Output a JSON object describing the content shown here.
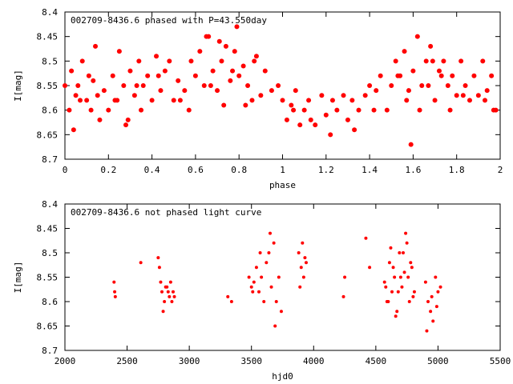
{
  "chart_data": [
    {
      "type": "scatter",
      "title": "002709-8436.6 phased with P=43.550day",
      "xlabel": "phase",
      "ylabel": "I[mag]",
      "xlim": [
        0,
        2
      ],
      "ylim": [
        8.4,
        8.7
      ],
      "y_inverted": true,
      "x_ticks": [
        "0",
        "0.2",
        "0.4",
        "0.6",
        "0.8",
        "1",
        "1.2",
        "1.4",
        "1.6",
        "1.8",
        "2"
      ],
      "y_ticks": [
        "8.4",
        "8.45",
        "8.5",
        "8.55",
        "8.6",
        "8.65",
        "8.7"
      ],
      "marker": "filled-circle",
      "color": "#ff0000",
      "grid": false,
      "series": [
        {
          "x": [
            0.0,
            0.02,
            0.03,
            0.04,
            0.05,
            0.06,
            0.08,
            0.1,
            0.12,
            0.13,
            0.14,
            0.16,
            0.18,
            0.2,
            0.22,
            0.24,
            0.25,
            0.27,
            0.28,
            0.3,
            0.32,
            0.34,
            0.35,
            0.36,
            0.38,
            0.4,
            0.42,
            0.44,
            0.46,
            0.48,
            0.5,
            0.52,
            0.55,
            0.58,
            0.6,
            0.62,
            0.64,
            0.66,
            0.68,
            0.7,
            0.72,
            0.74,
            0.76,
            0.78,
            0.8,
            0.82,
            0.84,
            0.86,
            0.88,
            0.9,
            0.92,
            0.95,
            0.98,
            1.0,
            1.02,
            1.04,
            1.06,
            1.08,
            1.1,
            1.12,
            1.15,
            1.18,
            1.2,
            1.22,
            1.25,
            1.28,
            1.3,
            1.32,
            1.35,
            1.38,
            1.4,
            1.42,
            1.45,
            1.48,
            1.5,
            1.52,
            1.54,
            1.56,
            1.58,
            1.6,
            1.62,
            1.64,
            1.66,
            1.68,
            1.7,
            1.72,
            1.74,
            1.76,
            1.78,
            1.8,
            1.82,
            1.84,
            1.86,
            1.88,
            1.9,
            1.92,
            1.94,
            1.96,
            1.98,
            0.07,
            0.11,
            0.15,
            0.23,
            0.29,
            0.33,
            0.43,
            0.53,
            0.57,
            0.67,
            0.73,
            0.77,
            0.83,
            0.87,
            1.05,
            1.13,
            1.23,
            1.33,
            1.43,
            1.53,
            1.57,
            1.63,
            1.67,
            1.73,
            1.77,
            1.83,
            1.93,
            1.97,
            0.65,
            0.79,
            1.69,
            1.59,
            0.71
          ],
          "y": [
            8.55,
            8.6,
            8.52,
            8.64,
            8.57,
            8.55,
            8.5,
            8.58,
            8.6,
            8.54,
            8.47,
            8.62,
            8.56,
            8.6,
            8.53,
            8.58,
            8.48,
            8.55,
            8.63,
            8.52,
            8.57,
            8.5,
            8.6,
            8.55,
            8.53,
            8.58,
            8.49,
            8.56,
            8.52,
            8.5,
            8.58,
            8.54,
            8.56,
            8.5,
            8.53,
            8.48,
            8.55,
            8.45,
            8.52,
            8.56,
            8.5,
            8.47,
            8.54,
            8.48,
            8.53,
            8.51,
            8.55,
            8.58,
            8.49,
            8.57,
            8.52,
            8.56,
            8.55,
            8.58,
            8.62,
            8.59,
            8.56,
            8.63,
            8.6,
            8.58,
            8.63,
            8.57,
            8.61,
            8.65,
            8.6,
            8.57,
            8.62,
            8.58,
            8.6,
            8.57,
            8.55,
            8.6,
            8.53,
            8.6,
            8.55,
            8.5,
            8.53,
            8.48,
            8.56,
            8.52,
            8.45,
            8.55,
            8.5,
            8.47,
            8.58,
            8.52,
            8.5,
            8.55,
            8.53,
            8.57,
            8.5,
            8.55,
            8.58,
            8.53,
            8.57,
            8.5,
            8.56,
            8.53,
            8.6,
            8.58,
            8.53,
            8.57,
            8.58,
            8.62,
            8.55,
            8.53,
            8.58,
            8.6,
            8.55,
            8.59,
            8.52,
            8.59,
            8.5,
            8.6,
            8.62,
            8.58,
            8.64,
            8.56,
            8.53,
            8.58,
            8.6,
            8.55,
            8.53,
            8.6,
            8.57,
            8.58,
            8.6,
            8.45,
            8.43,
            8.5,
            8.67,
            8.46
          ]
        }
      ]
    },
    {
      "type": "scatter",
      "title": "002709-8436.6 not phased light curve",
      "xlabel": "hjd0",
      "ylabel": "I[mag]",
      "xlim": [
        2000,
        5500
      ],
      "ylim": [
        8.4,
        8.7
      ],
      "y_inverted": true,
      "x_ticks": [
        "2000",
        "2500",
        "3000",
        "3500",
        "4000",
        "4500",
        "5000",
        "5500"
      ],
      "y_ticks": [
        "8.4",
        "8.45",
        "8.5",
        "8.55",
        "8.6",
        "8.65",
        "8.7"
      ],
      "marker": "filled-circle",
      "color": "#ff0000",
      "grid": false,
      "series": [
        {
          "x": [
            2395,
            2400,
            2405,
            2610,
            2750,
            2760,
            2770,
            2780,
            2800,
            2820,
            2830,
            2840,
            2850,
            2860,
            2870,
            2880,
            2790,
            2810,
            3310,
            3340,
            3480,
            3500,
            3520,
            3540,
            3560,
            3580,
            3600,
            3620,
            3640,
            3660,
            3680,
            3700,
            3720,
            3740,
            3510,
            3570,
            3650,
            3690,
            3880,
            3900,
            3920,
            3940,
            3890,
            3910,
            3930,
            4240,
            4250,
            4420,
            4450,
            4570,
            4590,
            4610,
            4630,
            4650,
            4670,
            4690,
            4710,
            4730,
            4750,
            4770,
            4790,
            4810,
            4580,
            4620,
            4660,
            4700,
            4740,
            4780,
            4600,
            4640,
            4680,
            4720,
            4760,
            4800,
            4900,
            4920,
            4940,
            4960,
            4980,
            5000,
            5020,
            4910,
            4950,
            4990
          ],
          "y": [
            8.56,
            8.58,
            8.59,
            8.52,
            8.51,
            8.53,
            8.56,
            8.58,
            8.6,
            8.57,
            8.58,
            8.59,
            8.56,
            8.6,
            8.58,
            8.59,
            8.62,
            8.57,
            8.59,
            8.6,
            8.55,
            8.57,
            8.56,
            8.53,
            8.58,
            8.55,
            8.6,
            8.52,
            8.5,
            8.57,
            8.48,
            8.6,
            8.55,
            8.62,
            8.58,
            8.5,
            8.46,
            8.65,
            8.5,
            8.53,
            8.55,
            8.52,
            8.57,
            8.48,
            8.51,
            8.59,
            8.55,
            8.47,
            8.53,
            8.56,
            8.6,
            8.52,
            8.58,
            8.55,
            8.62,
            8.5,
            8.57,
            8.54,
            8.48,
            8.6,
            8.53,
            8.58,
            8.57,
            8.49,
            8.63,
            8.55,
            8.46,
            8.52,
            8.6,
            8.53,
            8.58,
            8.5,
            8.55,
            8.59,
            8.56,
            8.6,
            8.62,
            8.64,
            8.55,
            8.58,
            8.57,
            8.66,
            8.59,
            8.61
          ]
        }
      ]
    }
  ]
}
